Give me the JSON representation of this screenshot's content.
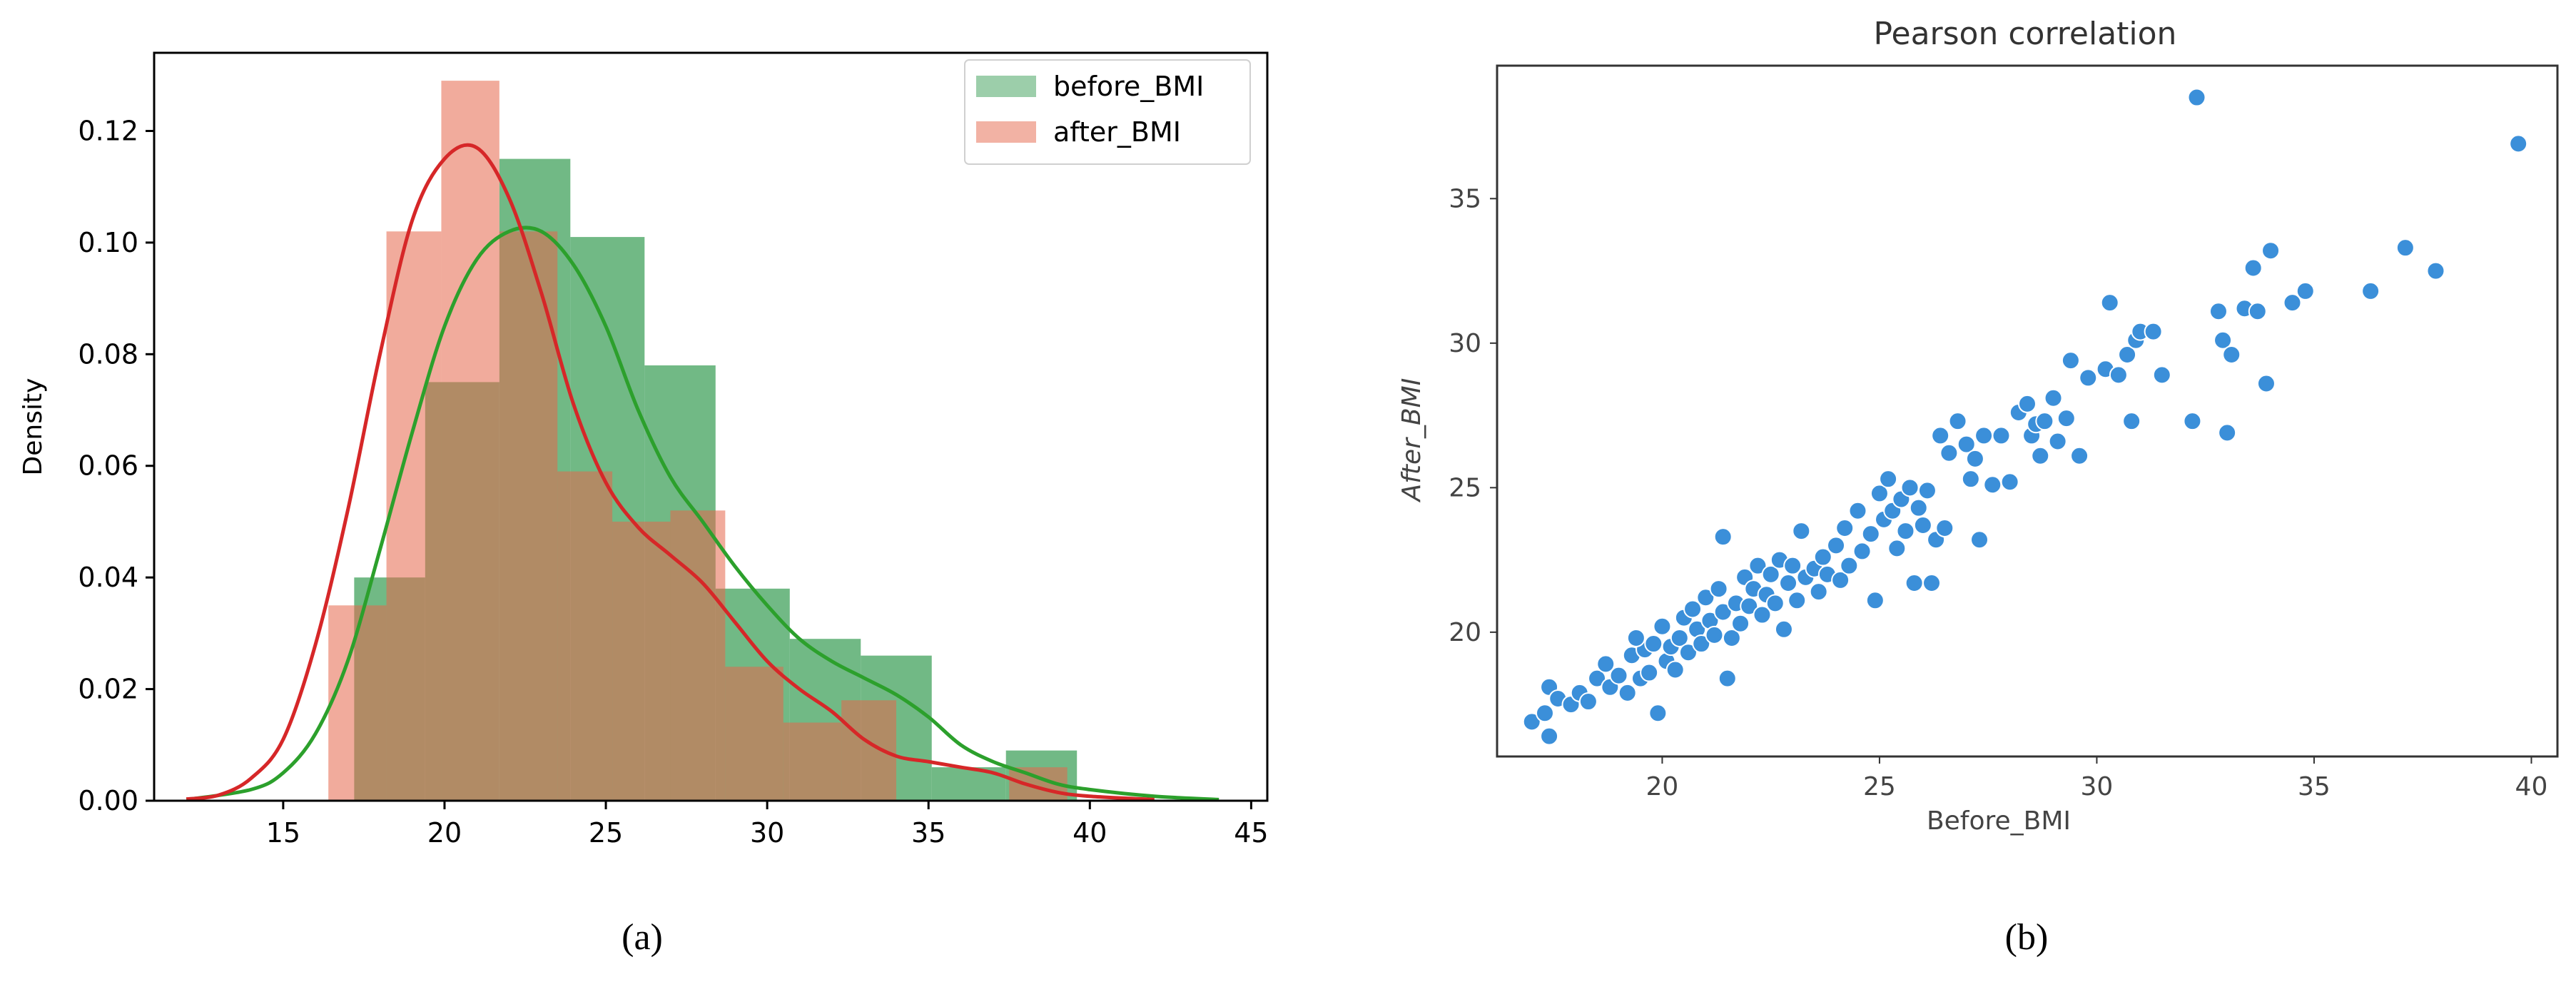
{
  "chart_data": [
    {
      "panel_caption": "(a)",
      "type": "bar",
      "subtype": "histogram_with_kde",
      "title": "",
      "xlabel": "",
      "ylabel": "Density",
      "xlim": [
        11,
        45.5
      ],
      "ylim": [
        0,
        0.134
      ],
      "xticks": [
        15,
        20,
        25,
        30,
        35,
        40,
        45
      ],
      "yticks": [
        0.0,
        0.02,
        0.04,
        0.06,
        0.08,
        0.1,
        0.12
      ],
      "ytick_labels": [
        "0.00",
        "0.02",
        "0.04",
        "0.06",
        "0.08",
        "0.10",
        "0.12"
      ],
      "legend": {
        "placement": "upper-right",
        "entries": [
          "before_BMI",
          "after_BMI"
        ]
      },
      "series": [
        {
          "name": "before_BMI",
          "color": "#3a9e56",
          "kde_color": "#2ca02c",
          "bins": [
            {
              "x0": 17.2,
              "x1": 19.4,
              "density": 0.04
            },
            {
              "x0": 19.4,
              "x1": 21.7,
              "density": 0.075
            },
            {
              "x0": 21.7,
              "x1": 23.9,
              "density": 0.115
            },
            {
              "x0": 23.9,
              "x1": 26.2,
              "density": 0.101
            },
            {
              "x0": 26.2,
              "x1": 28.4,
              "density": 0.078
            },
            {
              "x0": 28.4,
              "x1": 30.7,
              "density": 0.038
            },
            {
              "x0": 30.7,
              "x1": 32.9,
              "density": 0.029
            },
            {
              "x0": 32.9,
              "x1": 35.1,
              "density": 0.026
            },
            {
              "x0": 35.1,
              "x1": 37.4,
              "density": 0.006
            },
            {
              "x0": 37.4,
              "x1": 39.6,
              "density": 0.009
            }
          ],
          "kde": [
            [
              12,
              0.0002
            ],
            [
              14,
              0.002
            ],
            [
              15,
              0.005
            ],
            [
              16,
              0.012
            ],
            [
              17,
              0.025
            ],
            [
              18,
              0.045
            ],
            [
              19,
              0.066
            ],
            [
              20,
              0.085
            ],
            [
              21,
              0.097
            ],
            [
              22,
              0.102
            ],
            [
              23,
              0.102
            ],
            [
              24,
              0.096
            ],
            [
              25,
              0.085
            ],
            [
              26,
              0.07
            ],
            [
              27,
              0.058
            ],
            [
              28,
              0.05
            ],
            [
              29,
              0.042
            ],
            [
              30,
              0.035
            ],
            [
              31,
              0.029
            ],
            [
              32,
              0.025
            ],
            [
              33,
              0.022
            ],
            [
              34,
              0.019
            ],
            [
              35,
              0.015
            ],
            [
              36,
              0.01
            ],
            [
              37,
              0.007
            ],
            [
              38,
              0.005
            ],
            [
              39,
              0.003
            ],
            [
              40,
              0.002
            ],
            [
              42,
              0.0008
            ],
            [
              44,
              0.0002
            ]
          ]
        },
        {
          "name": "after_BMI",
          "color": "#e5664a",
          "kde_color": "#d62728",
          "bins": [
            {
              "x0": 16.4,
              "x1": 18.2,
              "density": 0.035
            },
            {
              "x0": 18.2,
              "x1": 19.9,
              "density": 0.102
            },
            {
              "x0": 19.9,
              "x1": 21.7,
              "density": 0.129
            },
            {
              "x0": 21.7,
              "x1": 23.5,
              "density": 0.102
            },
            {
              "x0": 23.5,
              "x1": 25.2,
              "density": 0.059
            },
            {
              "x0": 25.2,
              "x1": 27.0,
              "density": 0.05
            },
            {
              "x0": 27.0,
              "x1": 28.7,
              "density": 0.052
            },
            {
              "x0": 28.7,
              "x1": 30.5,
              "density": 0.024
            },
            {
              "x0": 30.5,
              "x1": 32.3,
              "density": 0.014
            },
            {
              "x0": 32.3,
              "x1": 34.0,
              "density": 0.018
            },
            {
              "x0": 34.0,
              "x1": 35.8,
              "density": 0.0
            },
            {
              "x0": 35.8,
              "x1": 37.5,
              "density": 0.0
            },
            {
              "x0": 37.5,
              "x1": 39.3,
              "density": 0.006
            }
          ],
          "kde": [
            [
              12,
              0.0003
            ],
            [
              13,
              0.001
            ],
            [
              14,
              0.004
            ],
            [
              15,
              0.011
            ],
            [
              16,
              0.028
            ],
            [
              17,
              0.052
            ],
            [
              18,
              0.08
            ],
            [
              19,
              0.104
            ],
            [
              20,
              0.115
            ],
            [
              21,
              0.117
            ],
            [
              22,
              0.108
            ],
            [
              23,
              0.091
            ],
            [
              24,
              0.071
            ],
            [
              25,
              0.057
            ],
            [
              26,
              0.049
            ],
            [
              27,
              0.044
            ],
            [
              28,
              0.039
            ],
            [
              29,
              0.032
            ],
            [
              30,
              0.025
            ],
            [
              31,
              0.02
            ],
            [
              32,
              0.016
            ],
            [
              33,
              0.011
            ],
            [
              34,
              0.008
            ],
            [
              35,
              0.007
            ],
            [
              36,
              0.006
            ],
            [
              37,
              0.005
            ],
            [
              38,
              0.003
            ],
            [
              39,
              0.0015
            ],
            [
              40,
              0.0008
            ],
            [
              42,
              0.0002
            ]
          ]
        }
      ]
    },
    {
      "panel_caption": "(b)",
      "type": "scatter",
      "title": "Pearson correlation",
      "xlabel": "Before_BMI",
      "ylabel": "After_BMI",
      "xlim": [
        16.2,
        40.6
      ],
      "ylim": [
        15.7,
        39.6
      ],
      "xticks": [
        20,
        25,
        30,
        35,
        40
      ],
      "yticks": [
        20,
        25,
        30,
        35
      ],
      "grid": false,
      "marker_color": "#3b8fd9",
      "points": [
        [
          17.0,
          16.9
        ],
        [
          17.3,
          17.2
        ],
        [
          17.4,
          18.1
        ],
        [
          17.6,
          17.7
        ],
        [
          17.4,
          16.4
        ],
        [
          17.9,
          17.5
        ],
        [
          18.1,
          17.9
        ],
        [
          18.3,
          17.6
        ],
        [
          18.5,
          18.4
        ],
        [
          18.7,
          18.9
        ],
        [
          18.8,
          18.1
        ],
        [
          19.0,
          18.5
        ],
        [
          19.2,
          17.9
        ],
        [
          19.3,
          19.2
        ],
        [
          19.5,
          18.4
        ],
        [
          19.6,
          19.4
        ],
        [
          19.4,
          19.8
        ],
        [
          19.7,
          18.6
        ],
        [
          19.9,
          17.2
        ],
        [
          19.8,
          19.6
        ],
        [
          20.1,
          19.0
        ],
        [
          20.0,
          20.2
        ],
        [
          20.2,
          19.5
        ],
        [
          20.3,
          18.7
        ],
        [
          20.4,
          19.8
        ],
        [
          20.5,
          20.5
        ],
        [
          20.6,
          19.3
        ],
        [
          20.7,
          20.8
        ],
        [
          20.8,
          20.1
        ],
        [
          20.9,
          19.6
        ],
        [
          21.0,
          21.2
        ],
        [
          21.1,
          20.4
        ],
        [
          21.2,
          19.9
        ],
        [
          21.3,
          21.5
        ],
        [
          21.4,
          20.7
        ],
        [
          21.5,
          18.4
        ],
        [
          21.4,
          23.3
        ],
        [
          21.6,
          19.8
        ],
        [
          21.7,
          21.0
        ],
        [
          21.8,
          20.3
        ],
        [
          21.9,
          21.9
        ],
        [
          22.0,
          20.9
        ],
        [
          22.1,
          21.5
        ],
        [
          22.2,
          22.3
        ],
        [
          22.3,
          20.6
        ],
        [
          22.4,
          21.3
        ],
        [
          22.5,
          22.0
        ],
        [
          22.6,
          21.0
        ],
        [
          22.7,
          22.5
        ],
        [
          22.8,
          20.1
        ],
        [
          22.9,
          21.7
        ],
        [
          23.0,
          22.3
        ],
        [
          23.1,
          21.1
        ],
        [
          23.2,
          23.5
        ],
        [
          23.3,
          21.9
        ],
        [
          23.5,
          22.2
        ],
        [
          23.6,
          21.4
        ],
        [
          23.7,
          22.6
        ],
        [
          23.8,
          22.0
        ],
        [
          24.0,
          23.0
        ],
        [
          24.1,
          21.8
        ],
        [
          24.2,
          23.6
        ],
        [
          24.3,
          22.3
        ],
        [
          24.5,
          24.2
        ],
        [
          24.6,
          22.8
        ],
        [
          24.8,
          23.4
        ],
        [
          24.9,
          21.1
        ],
        [
          25.0,
          24.8
        ],
        [
          25.1,
          23.9
        ],
        [
          25.2,
          25.3
        ],
        [
          25.3,
          24.2
        ],
        [
          25.4,
          22.9
        ],
        [
          25.5,
          24.6
        ],
        [
          25.6,
          23.5
        ],
        [
          25.7,
          25.0
        ],
        [
          25.8,
          21.7
        ],
        [
          25.9,
          24.3
        ],
        [
          26.0,
          23.7
        ],
        [
          26.1,
          24.9
        ],
        [
          26.2,
          21.7
        ],
        [
          26.3,
          23.2
        ],
        [
          26.4,
          26.8
        ],
        [
          26.5,
          23.6
        ],
        [
          26.6,
          26.2
        ],
        [
          26.8,
          27.3
        ],
        [
          27.0,
          26.5
        ],
        [
          27.1,
          25.3
        ],
        [
          27.2,
          26.0
        ],
        [
          27.3,
          23.2
        ],
        [
          27.4,
          26.8
        ],
        [
          27.6,
          25.1
        ],
        [
          27.8,
          26.8
        ],
        [
          28.0,
          25.2
        ],
        [
          28.2,
          27.6
        ],
        [
          28.4,
          27.9
        ],
        [
          28.5,
          26.8
        ],
        [
          28.6,
          27.2
        ],
        [
          28.7,
          26.1
        ],
        [
          28.8,
          27.3
        ],
        [
          29.0,
          28.1
        ],
        [
          29.1,
          26.6
        ],
        [
          29.3,
          27.4
        ],
        [
          29.4,
          29.4
        ],
        [
          29.6,
          26.1
        ],
        [
          29.8,
          28.8
        ],
        [
          30.2,
          29.1
        ],
        [
          30.3,
          31.4
        ],
        [
          30.5,
          28.9
        ],
        [
          30.7,
          29.6
        ],
        [
          30.8,
          27.3
        ],
        [
          30.9,
          30.1
        ],
        [
          31.0,
          30.4
        ],
        [
          31.3,
          30.4
        ],
        [
          31.5,
          28.9
        ],
        [
          32.2,
          27.3
        ],
        [
          32.8,
          31.1
        ],
        [
          32.9,
          30.1
        ],
        [
          33.0,
          26.9
        ],
        [
          33.1,
          29.6
        ],
        [
          33.4,
          31.2
        ],
        [
          33.6,
          32.6
        ],
        [
          33.7,
          31.1
        ],
        [
          33.9,
          28.6
        ],
        [
          34.0,
          33.2
        ],
        [
          34.5,
          31.4
        ],
        [
          34.8,
          31.8
        ],
        [
          36.3,
          31.8
        ],
        [
          37.1,
          33.3
        ],
        [
          37.8,
          32.5
        ],
        [
          39.7,
          36.9
        ],
        [
          32.3,
          38.5
        ]
      ]
    }
  ]
}
